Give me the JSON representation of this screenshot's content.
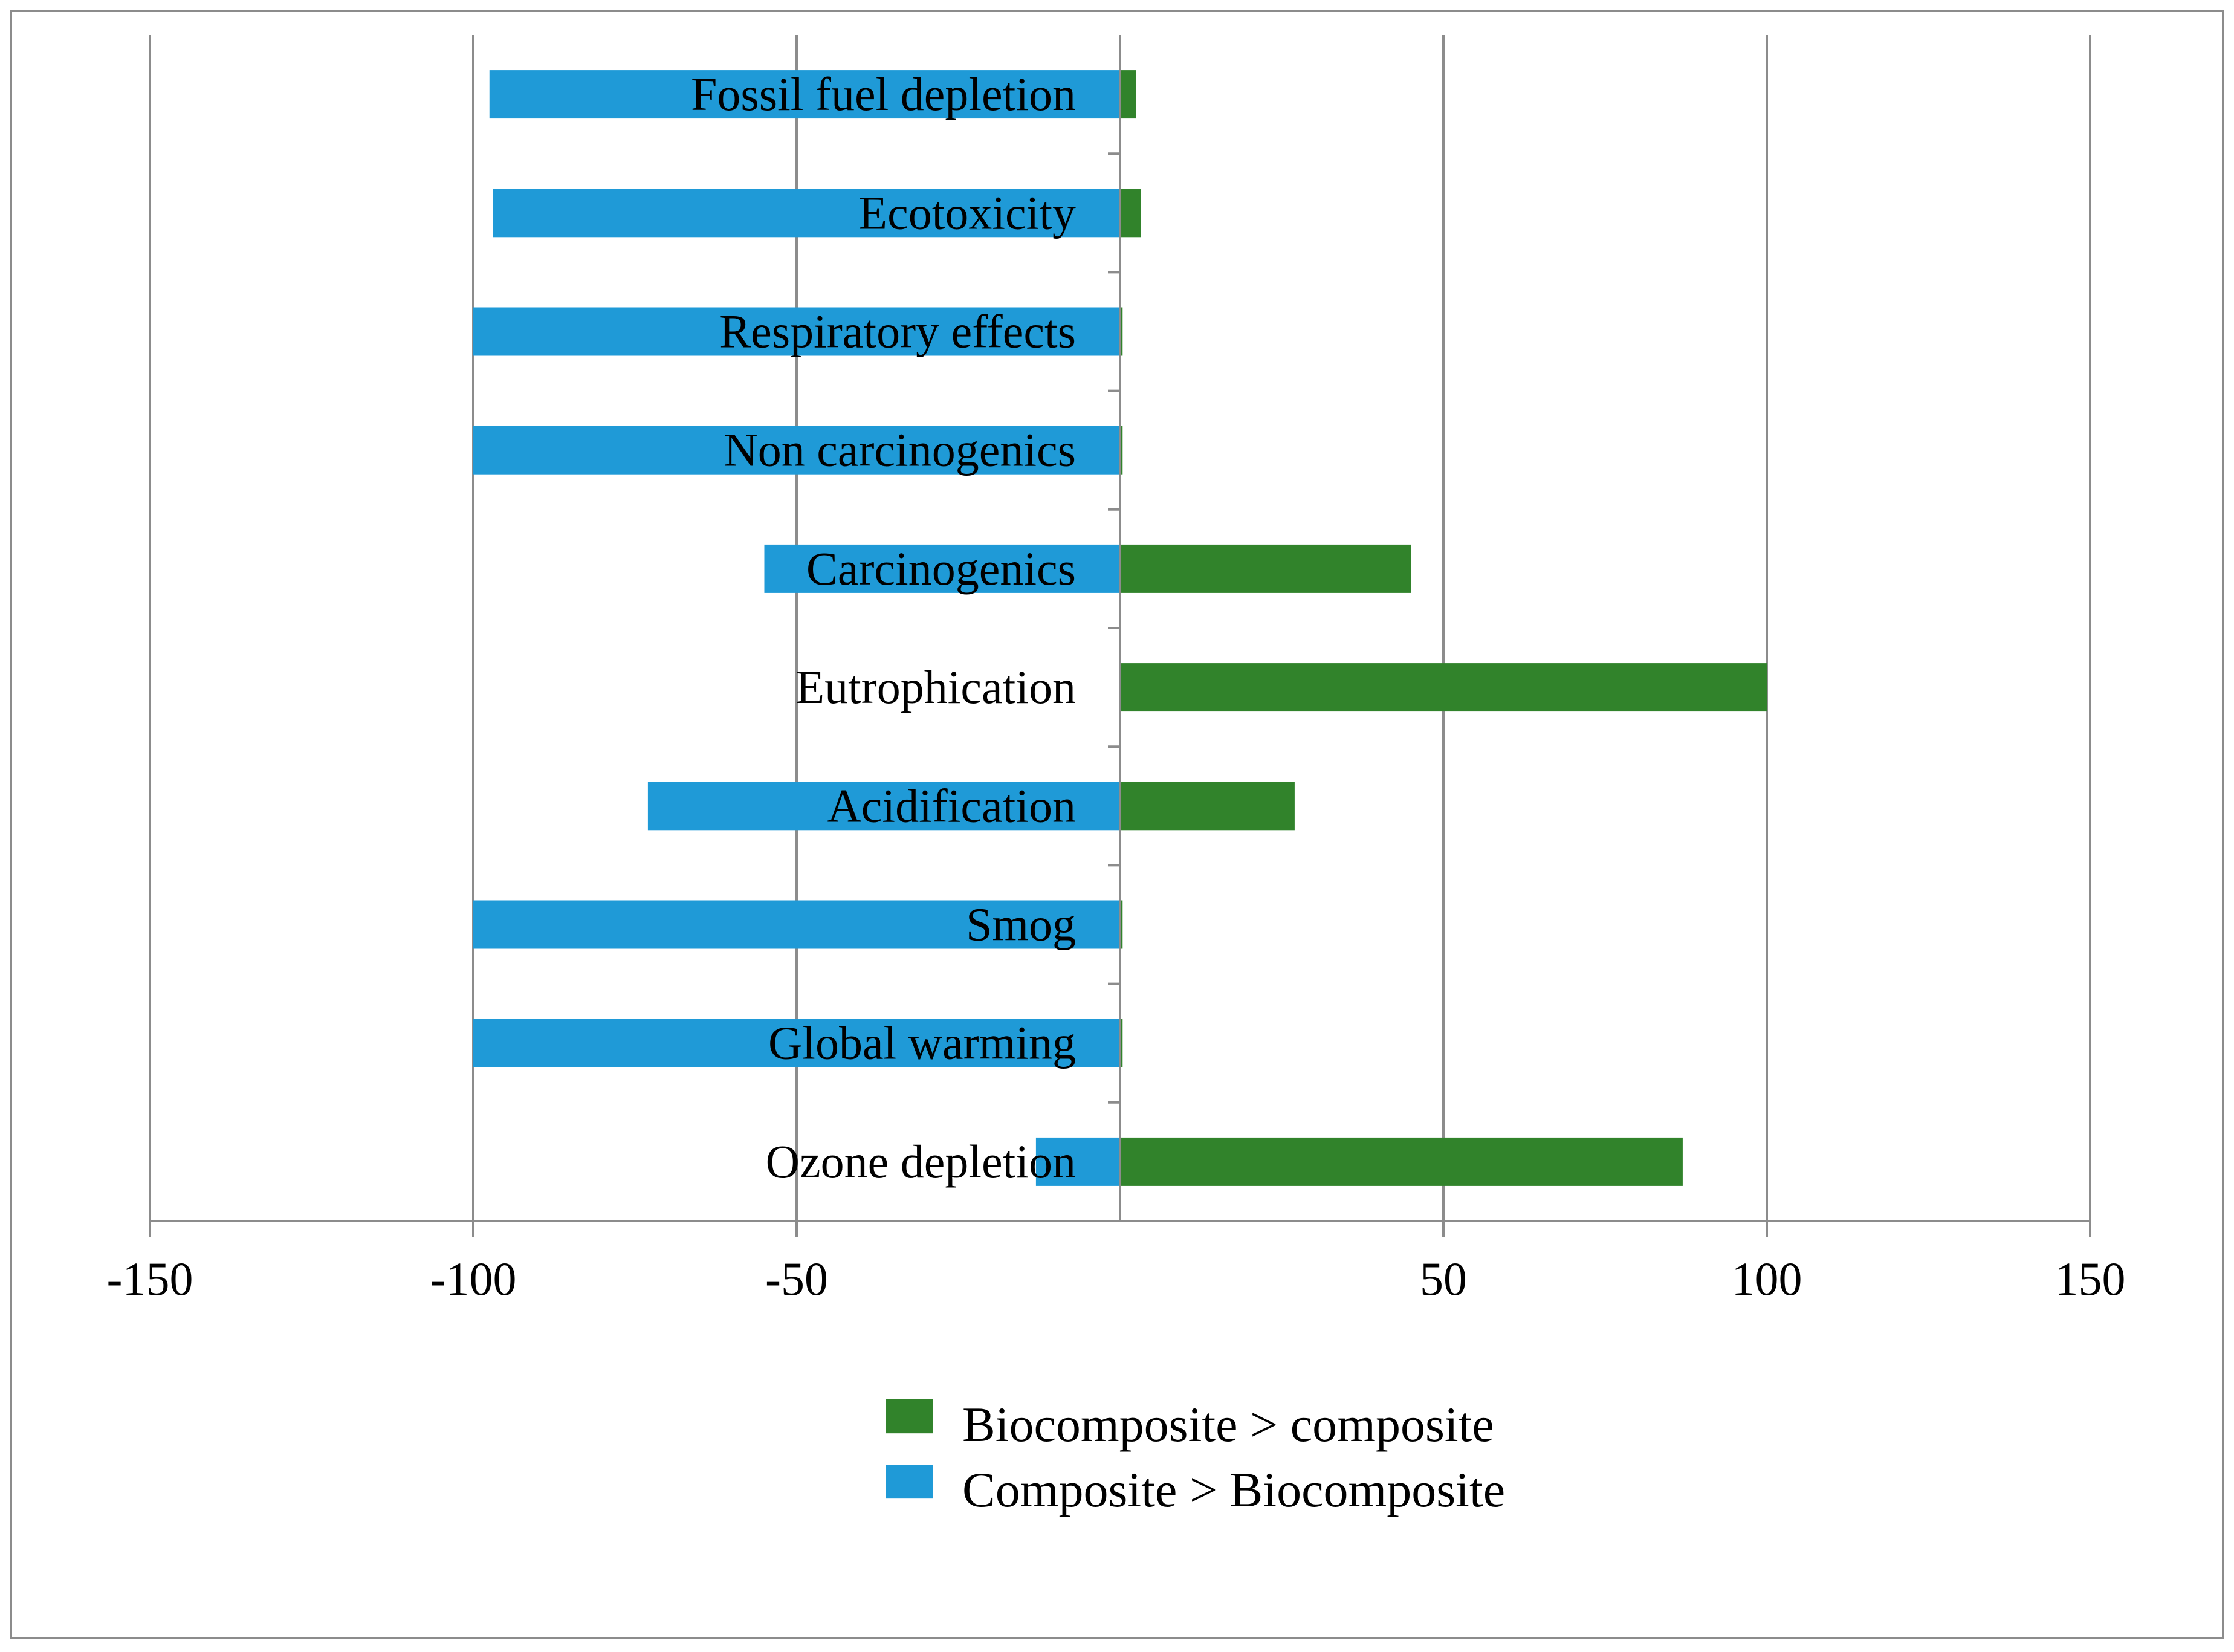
{
  "chart_data": {
    "type": "bar",
    "orientation": "horizontal",
    "title": "",
    "xlabel": "",
    "ylabel": "",
    "categories": [
      "Fossil fuel depletion",
      "Ecotoxicity",
      "Respiratory effects",
      "Non carcinogenics",
      "Carcinogenics",
      "Eutrophication",
      "Acidification",
      "Smog",
      "Global warming",
      "Ozone depletion"
    ],
    "series": [
      {
        "name": "Composite > Biocomposite",
        "color": "#1f9ad7",
        "values": [
          -97.5,
          -97,
          -100,
          -100,
          -55,
          0,
          -73,
          -100,
          -100,
          -13
        ]
      },
      {
        "name": "Biocomposite > composite",
        "color": "#31832b",
        "values": [
          2.5,
          3.2,
          0.4,
          0.4,
          45,
          100,
          27,
          0.4,
          0.4,
          87
        ]
      }
    ],
    "xlim": [
      -150,
      150
    ],
    "xticks": [
      "-150",
      "-100",
      "-50",
      "50",
      "100",
      "150"
    ],
    "xtick_values": [
      -150,
      -100,
      -50,
      50,
      100,
      150
    ],
    "grid": true,
    "legend": {
      "placement": "bottom-center",
      "entries": [
        {
          "label": "Biocomposite > composite",
          "color": "#31832b"
        },
        {
          "label": "Composite > Biocomposite",
          "color": "#1f9ad7"
        }
      ]
    },
    "colors": {
      "gridline": "#8c8c8c",
      "frame": "#8c8c8c"
    }
  }
}
